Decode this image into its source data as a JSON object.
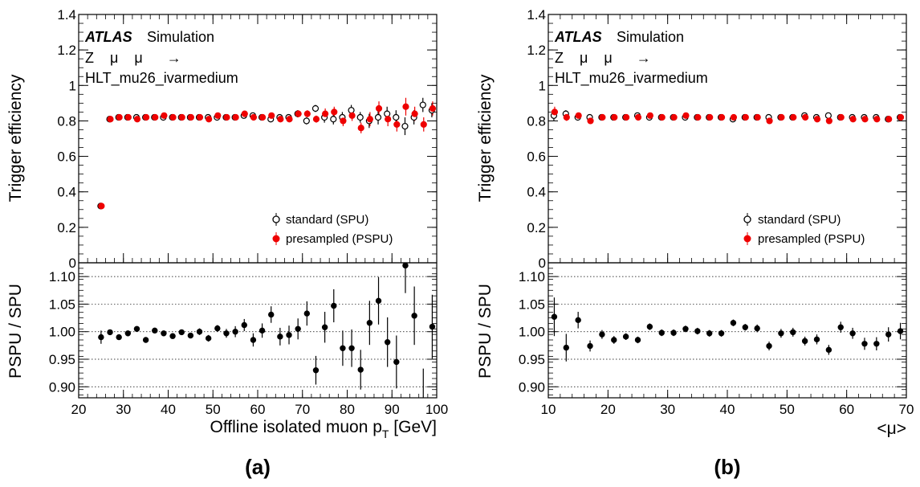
{
  "chart_data": [
    {
      "type": "scatter",
      "caption": "(a)",
      "experiment_label": "ATLAS",
      "sim_label": "Simulation",
      "process": "Z    μ    μ      →",
      "trigger": "HLT_mu26_ivarmedium",
      "top_ylabel": "Trigger efficiency",
      "bottom_ylabel": "PSPU / SPU",
      "xlabel": "Offline isolated muon p",
      "xlabel_sub": "T",
      "xlabel_unit": " [GeV]",
      "xlim": [
        20,
        100
      ],
      "top_ylim": [
        0,
        1.4
      ],
      "bottom_ylim": [
        0.88,
        1.125
      ],
      "x_ticks": [
        "20",
        "30",
        "40",
        "50",
        "60",
        "70",
        "80",
        "90",
        "100"
      ],
      "top_ticks": [
        "0",
        "0.2",
        "0.4",
        "0.6",
        "0.8",
        "1",
        "1.2",
        "1.4"
      ],
      "bottom_ticks": [
        "0.90",
        "0.95",
        "1.00",
        "1.05",
        "1.10"
      ],
      "legend": [
        "standard (SPU)",
        "presampled (PSPU)"
      ],
      "legend_position": "bottom-right",
      "x": [
        25,
        27,
        29,
        31,
        33,
        35,
        37,
        39,
        41,
        43,
        45,
        47,
        49,
        51,
        53,
        55,
        57,
        59,
        61,
        63,
        65,
        67,
        69,
        71,
        73,
        75,
        77,
        79,
        81,
        83,
        85,
        87,
        89,
        91,
        93,
        95,
        97,
        99
      ],
      "series": [
        {
          "name": "standard (SPU)",
          "style": "open",
          "values": [
            0.32,
            0.81,
            0.82,
            0.82,
            0.82,
            0.82,
            0.82,
            0.82,
            0.82,
            0.82,
            0.82,
            0.82,
            0.82,
            0.82,
            0.82,
            0.82,
            0.83,
            0.83,
            0.82,
            0.81,
            0.82,
            0.82,
            0.84,
            0.8,
            0.87,
            0.82,
            0.81,
            0.82,
            0.86,
            0.82,
            0.8,
            0.82,
            0.84,
            0.82,
            0.77,
            0.82,
            0.89,
            0.86
          ],
          "errors": [
            0.01,
            0.01,
            0.01,
            0.01,
            0.01,
            0.01,
            0.01,
            0.01,
            0.01,
            0.01,
            0.01,
            0.01,
            0.01,
            0.01,
            0.01,
            0.01,
            0.01,
            0.01,
            0.01,
            0.01,
            0.01,
            0.01,
            0.02,
            0.02,
            0.02,
            0.03,
            0.03,
            0.03,
            0.03,
            0.03,
            0.04,
            0.04,
            0.04,
            0.04,
            0.05,
            0.04,
            0.04,
            0.04
          ]
        },
        {
          "name": "presampled (PSPU)",
          "style": "filled",
          "values": [
            0.32,
            0.81,
            0.82,
            0.82,
            0.81,
            0.82,
            0.82,
            0.83,
            0.82,
            0.82,
            0.82,
            0.82,
            0.81,
            0.83,
            0.82,
            0.82,
            0.84,
            0.82,
            0.82,
            0.83,
            0.81,
            0.81,
            0.84,
            0.84,
            0.81,
            0.84,
            0.85,
            0.8,
            0.83,
            0.76,
            0.81,
            0.87,
            0.81,
            0.78,
            0.88,
            0.84,
            0.78,
            0.87
          ],
          "errors": [
            0.01,
            0.01,
            0.01,
            0.01,
            0.01,
            0.01,
            0.01,
            0.01,
            0.01,
            0.01,
            0.01,
            0.01,
            0.01,
            0.01,
            0.01,
            0.01,
            0.01,
            0.01,
            0.01,
            0.01,
            0.01,
            0.01,
            0.02,
            0.02,
            0.02,
            0.03,
            0.03,
            0.03,
            0.03,
            0.03,
            0.04,
            0.04,
            0.04,
            0.04,
            0.05,
            0.04,
            0.04,
            0.04
          ]
        }
      ],
      "ratio": {
        "values": [
          0.99,
          0.999,
          0.99,
          0.997,
          1.005,
          0.985,
          1.002,
          0.997,
          0.992,
          0.999,
          0.993,
          1.0,
          0.988,
          1.006,
          0.997,
          1.0,
          1.012,
          0.985,
          1.002,
          1.031,
          0.991,
          0.994,
          1.005,
          1.033,
          0.93,
          1.008,
          1.047,
          0.97,
          0.97,
          0.931,
          1.016,
          1.056,
          0.981,
          0.945,
          1.12,
          1.029,
          0.878,
          1.009
        ],
        "errors": [
          0.012,
          0.005,
          0.005,
          0.005,
          0.005,
          0.005,
          0.005,
          0.005,
          0.005,
          0.005,
          0.005,
          0.006,
          0.006,
          0.006,
          0.008,
          0.01,
          0.011,
          0.012,
          0.013,
          0.015,
          0.016,
          0.017,
          0.019,
          0.022,
          0.026,
          0.028,
          0.03,
          0.032,
          0.034,
          0.036,
          0.04,
          0.043,
          0.045,
          0.048,
          0.05,
          0.053,
          0.055,
          0.058
        ]
      }
    },
    {
      "type": "scatter",
      "caption": "(b)",
      "experiment_label": "ATLAS",
      "sim_label": "Simulation",
      "process": "Z    μ    μ      →",
      "trigger": "HLT_mu26_ivarmedium",
      "top_ylabel": "Trigger efficiency",
      "bottom_ylabel": "PSPU / SPU",
      "xlabel": "<μ>",
      "xlim": [
        10,
        70
      ],
      "top_ylim": [
        0,
        1.4
      ],
      "bottom_ylim": [
        0.88,
        1.125
      ],
      "x_ticks": [
        "10",
        "20",
        "30",
        "40",
        "50",
        "60",
        "70"
      ],
      "top_ticks": [
        "0",
        "0.2",
        "0.4",
        "0.6",
        "0.8",
        "1",
        "1.2",
        "1.4"
      ],
      "bottom_ticks": [
        "0.90",
        "0.95",
        "1.00",
        "1.05",
        "1.10"
      ],
      "legend": [
        "standard (SPU)",
        "presampled (PSPU)"
      ],
      "legend_position": "bottom-right",
      "x": [
        11,
        13,
        15,
        17,
        19,
        21,
        23,
        25,
        27,
        29,
        31,
        33,
        35,
        37,
        39,
        41,
        43,
        45,
        47,
        49,
        51,
        53,
        55,
        57,
        59,
        61,
        63,
        65,
        67,
        69
      ],
      "series": [
        {
          "name": "standard (SPU)",
          "style": "open",
          "values": [
            0.83,
            0.84,
            0.82,
            0.82,
            0.82,
            0.82,
            0.82,
            0.83,
            0.82,
            0.82,
            0.82,
            0.82,
            0.82,
            0.82,
            0.82,
            0.81,
            0.82,
            0.82,
            0.82,
            0.82,
            0.82,
            0.83,
            0.82,
            0.83,
            0.82,
            0.82,
            0.82,
            0.82,
            0.81,
            0.82
          ],
          "errors": [
            0.03,
            0.02,
            0.01,
            0.01,
            0.01,
            0.01,
            0.01,
            0.01,
            0.01,
            0.01,
            0.01,
            0.01,
            0.01,
            0.01,
            0.01,
            0.01,
            0.01,
            0.01,
            0.01,
            0.01,
            0.01,
            0.01,
            0.01,
            0.01,
            0.01,
            0.01,
            0.01,
            0.01,
            0.01,
            0.01
          ]
        },
        {
          "name": "presampled (PSPU)",
          "style": "filled",
          "values": [
            0.85,
            0.82,
            0.83,
            0.8,
            0.82,
            0.82,
            0.82,
            0.82,
            0.83,
            0.82,
            0.82,
            0.83,
            0.82,
            0.82,
            0.82,
            0.82,
            0.82,
            0.82,
            0.8,
            0.82,
            0.82,
            0.82,
            0.81,
            0.8,
            0.82,
            0.81,
            0.81,
            0.81,
            0.81,
            0.82
          ],
          "errors": [
            0.03,
            0.02,
            0.01,
            0.01,
            0.01,
            0.01,
            0.01,
            0.01,
            0.01,
            0.01,
            0.01,
            0.01,
            0.01,
            0.01,
            0.01,
            0.01,
            0.01,
            0.01,
            0.01,
            0.01,
            0.01,
            0.01,
            0.01,
            0.01,
            0.01,
            0.01,
            0.01,
            0.01,
            0.01,
            0.01
          ]
        }
      ],
      "ratio": {
        "values": [
          1.027,
          0.971,
          1.021,
          0.974,
          0.995,
          0.985,
          0.991,
          0.985,
          1.009,
          0.998,
          0.998,
          1.005,
          1.001,
          0.997,
          0.997,
          1.016,
          1.008,
          1.006,
          0.974,
          0.997,
          0.999,
          0.983,
          0.986,
          0.967,
          1.008,
          0.997,
          0.978,
          0.978,
          0.995,
          1.001
        ],
        "errors": [
          0.035,
          0.025,
          0.015,
          0.01,
          0.008,
          0.007,
          0.006,
          0.006,
          0.006,
          0.006,
          0.006,
          0.006,
          0.006,
          0.006,
          0.006,
          0.006,
          0.006,
          0.007,
          0.008,
          0.008,
          0.008,
          0.008,
          0.009,
          0.009,
          0.01,
          0.01,
          0.011,
          0.012,
          0.013,
          0.015
        ]
      }
    }
  ]
}
